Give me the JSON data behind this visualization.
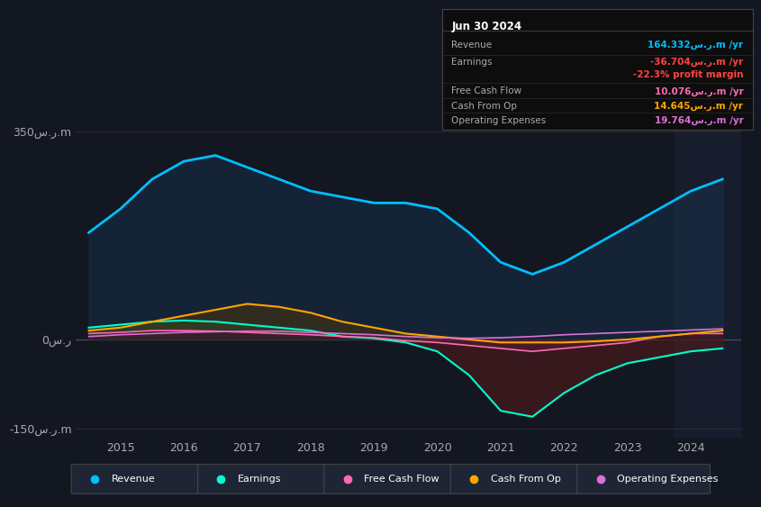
{
  "background_color": "#131722",
  "plot_bg_color": "#131722",
  "title_box": {
    "date": "Jun 30 2024",
    "rows": [
      {
        "label": "Revenue",
        "value": "164.332س.ر.m /yr",
        "color": "#00bfff"
      },
      {
        "label": "Earnings",
        "value": "-36.704س.ر.m /yr",
        "color": "#ff4444"
      },
      {
        "label": "",
        "value": "-22.3% profit margin",
        "color": "#ff4444"
      },
      {
        "label": "Free Cash Flow",
        "value": "10.076س.ر.m /yr",
        "color": "#ff69b4"
      },
      {
        "label": "Cash From Op",
        "value": "14.645س.ر.m /yr",
        "color": "#ffa500"
      },
      {
        "label": "Operating Expenses",
        "value": "19.764س.ر.m /yr",
        "color": "#da70d6"
      }
    ]
  },
  "years": [
    2014.5,
    2015.0,
    2015.5,
    2016.0,
    2016.5,
    2017.0,
    2017.5,
    2018.0,
    2018.5,
    2019.0,
    2019.5,
    2020.0,
    2020.5,
    2021.0,
    2021.5,
    2022.0,
    2022.5,
    2023.0,
    2023.5,
    2024.0,
    2024.5
  ],
  "revenue": [
    180,
    220,
    270,
    300,
    310,
    290,
    270,
    250,
    240,
    230,
    230,
    220,
    180,
    130,
    110,
    130,
    160,
    190,
    220,
    250,
    270
  ],
  "earnings": [
    20,
    25,
    30,
    32,
    30,
    25,
    20,
    15,
    5,
    2,
    -5,
    -20,
    -60,
    -120,
    -130,
    -90,
    -60,
    -40,
    -30,
    -20,
    -15
  ],
  "fcf": [
    10,
    12,
    15,
    15,
    14,
    12,
    10,
    8,
    5,
    3,
    -2,
    -5,
    -10,
    -15,
    -20,
    -15,
    -10,
    -5,
    5,
    10,
    10
  ],
  "cashfromop": [
    15,
    20,
    30,
    40,
    50,
    60,
    55,
    45,
    30,
    20,
    10,
    5,
    0,
    -5,
    -5,
    -5,
    -3,
    0,
    5,
    10,
    15
  ],
  "opex": [
    5,
    8,
    10,
    12,
    13,
    14,
    14,
    12,
    10,
    8,
    5,
    3,
    2,
    3,
    5,
    8,
    10,
    12,
    14,
    16,
    18
  ],
  "yticks": [
    -150,
    0,
    350
  ],
  "ylim": [
    -165,
    370
  ],
  "xlim": [
    2014.3,
    2024.8
  ],
  "xticks": [
    2015,
    2016,
    2017,
    2018,
    2019,
    2020,
    2021,
    2022,
    2023,
    2024
  ],
  "legend": [
    {
      "label": "Revenue",
      "color": "#00bfff"
    },
    {
      "label": "Earnings",
      "color": "#00ffcc"
    },
    {
      "label": "Free Cash Flow",
      "color": "#ff69b4"
    },
    {
      "label": "Cash From Op",
      "color": "#ffa500"
    },
    {
      "label": "Operating Expenses",
      "color": "#da70d6"
    }
  ],
  "colors": {
    "revenue": "#00bfff",
    "earnings": "#00ffcc",
    "fcf": "#ff69b4",
    "cashfromop": "#ffa500",
    "opex": "#da70d6",
    "revenue_fill": "#1a3a5c",
    "earnings_fill_pos": "#1a5c3a",
    "earnings_fill_neg": "#5c1a1a",
    "fcf_fill_neg": "#5c2040",
    "cashfromop_fill_pos": "#5c3a00",
    "cashfromop_fill_neg": "#3a2000"
  }
}
